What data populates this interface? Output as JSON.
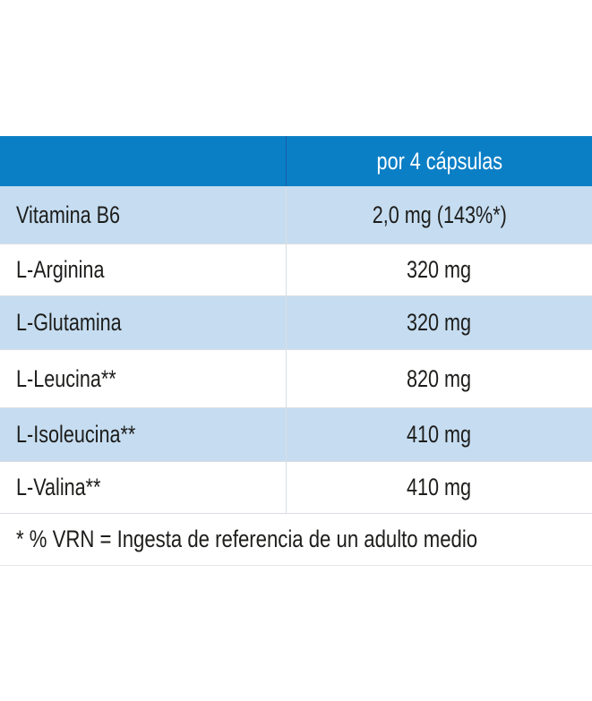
{
  "table": {
    "header": {
      "col1": "",
      "col2": "por 4 cápsulas"
    },
    "rows": [
      {
        "name": "Vitamina B6",
        "value": "2,0 mg (143%*)"
      },
      {
        "name": "L-Arginina",
        "value": "320 mg"
      },
      {
        "name": "L-Glutamina",
        "value": "320 mg"
      },
      {
        "name": "L-Leucina**",
        "value": "820 mg"
      },
      {
        "name": "L-Isoleucina**",
        "value": "410 mg"
      },
      {
        "name": "L-Valina**",
        "value": "410 mg"
      }
    ],
    "footnote": "* % VRN = Ingesta de referencia de un adulto medio"
  },
  "colors": {
    "header": "#0b7fc6",
    "alt_row": "#c6ddf1"
  }
}
